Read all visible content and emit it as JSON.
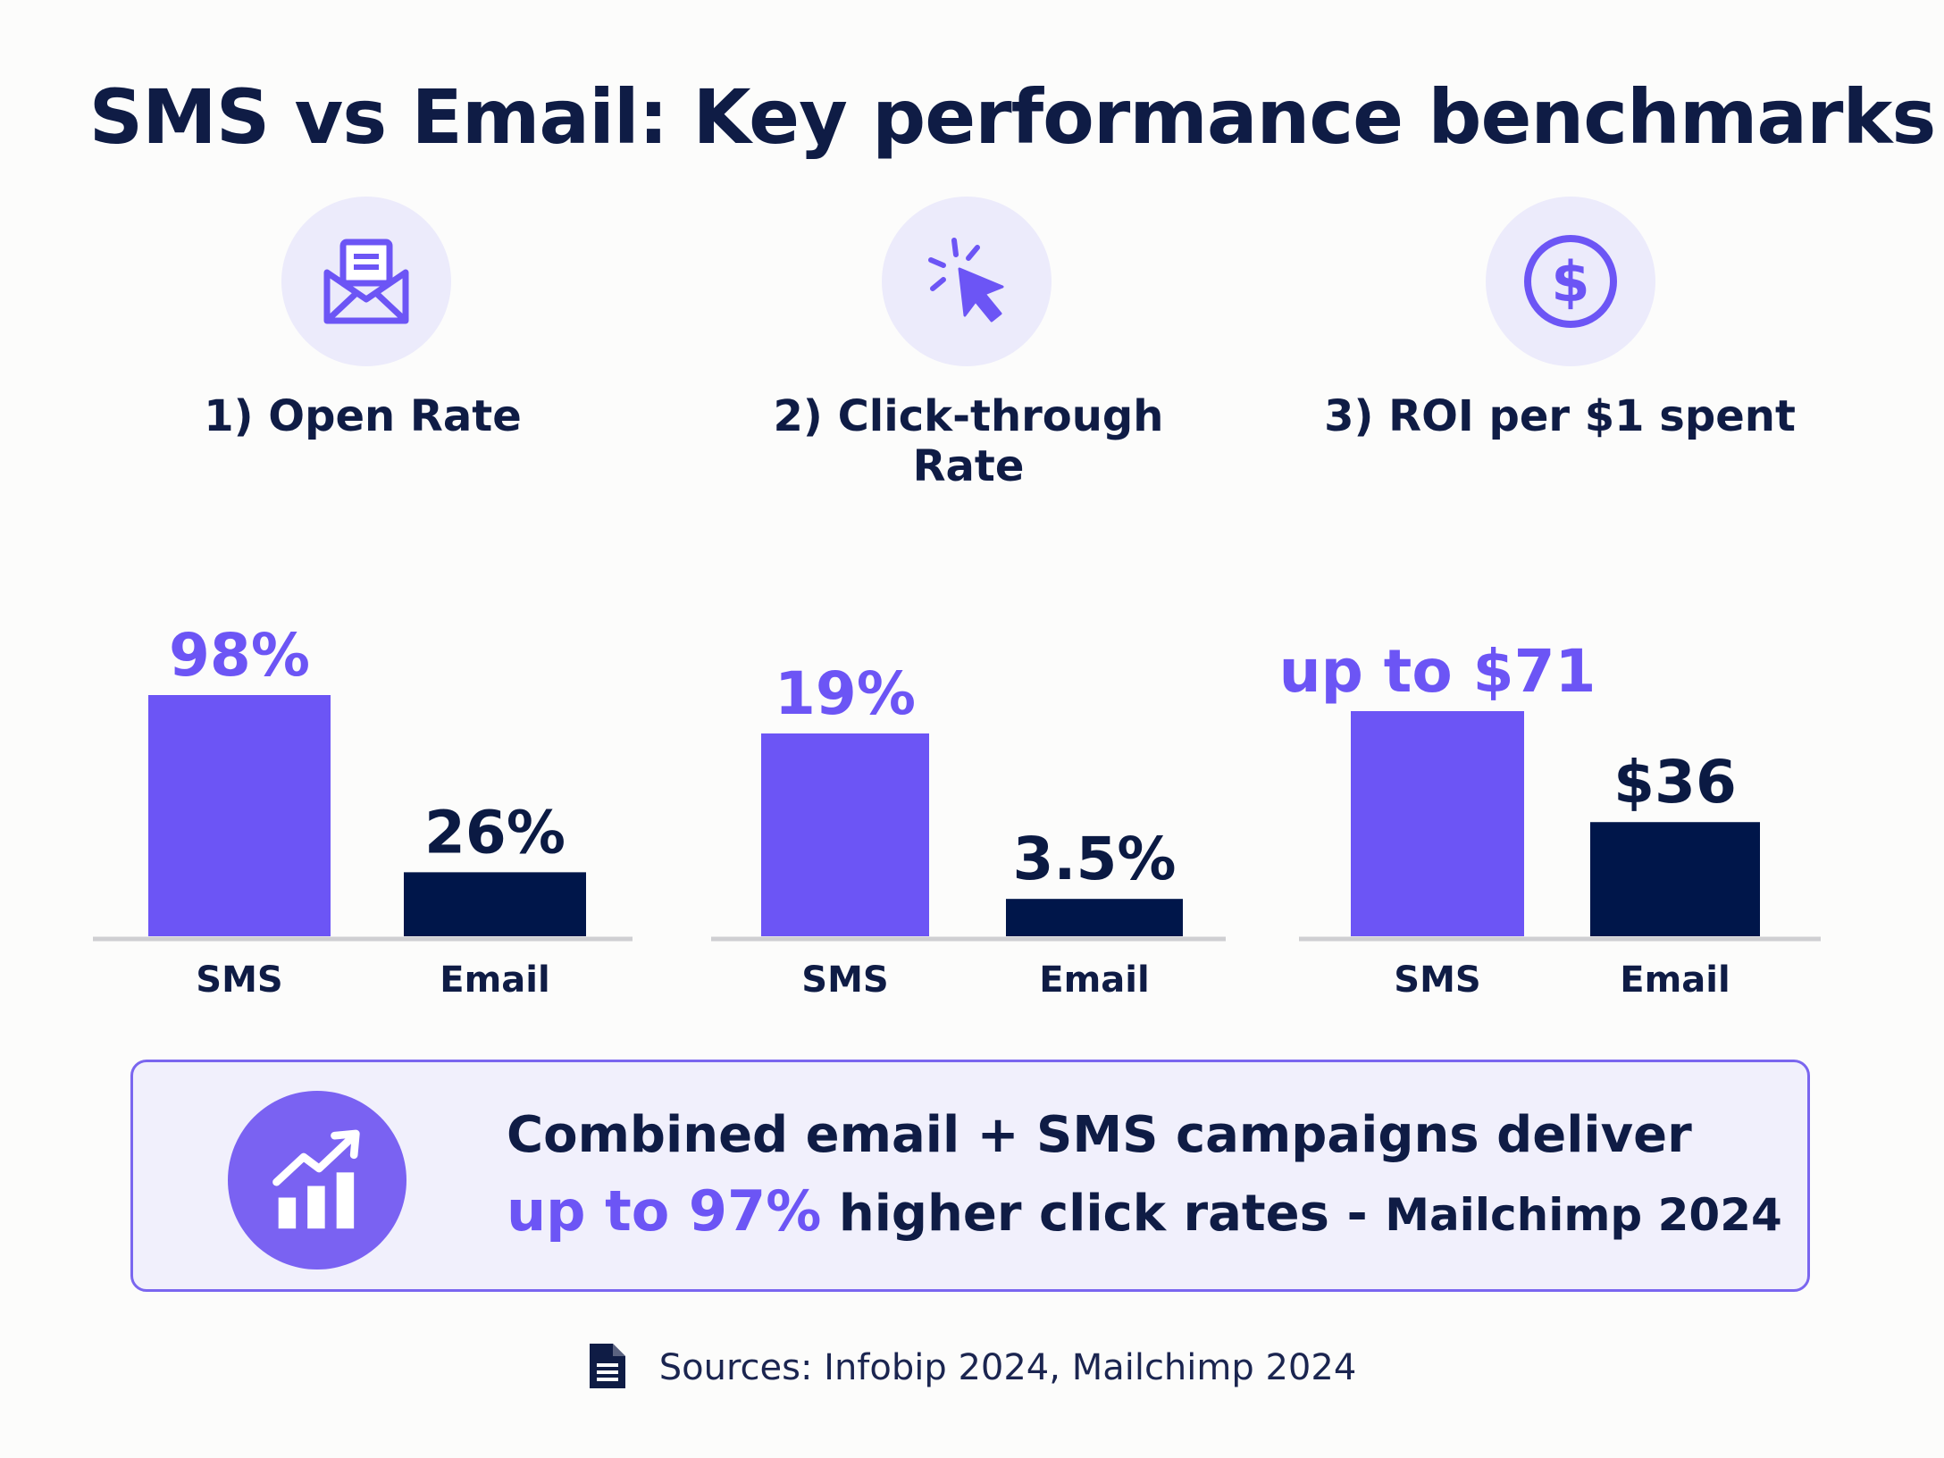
{
  "title": "SMS vs Email: Key performance benchmarks",
  "colors": {
    "sms": "#6c55f5",
    "email": "#00164a"
  },
  "panels": [
    {
      "icon": "envelope-icon",
      "title": "1) Open Rate"
    },
    {
      "icon": "cursor-click-icon",
      "title": "2) Click-through Rate"
    },
    {
      "icon": "dollar-icon",
      "title": "3) ROI per $1 spent"
    }
  ],
  "chart_data": [
    {
      "type": "bar",
      "title": "1) Open Rate",
      "categories": [
        "SMS",
        "Email"
      ],
      "values": [
        98,
        26
      ],
      "value_labels": [
        "98%",
        "26%"
      ],
      "unit": "%"
    },
    {
      "type": "bar",
      "title": "2) Click-through Rate",
      "categories": [
        "SMS",
        "Email"
      ],
      "values": [
        19,
        3.5
      ],
      "value_labels": [
        "19%",
        "3.5%"
      ],
      "unit": "%"
    },
    {
      "type": "bar",
      "title": "3) ROI per $1 spent",
      "categories": [
        "SMS",
        "Email"
      ],
      "values": [
        71,
        36
      ],
      "value_labels": [
        "up to $71",
        "$36"
      ],
      "unit": "$"
    }
  ],
  "callout": {
    "icon": "growth-chart-icon",
    "line1": "Combined email + SMS campaigns deliver",
    "highlight": "up to 97%",
    "rest": "higher click rates -",
    "source": "Mailchimp 2024"
  },
  "sources": {
    "icon": "document-icon",
    "text": "Sources: Infobip 2024, Mailchimp 2024"
  }
}
